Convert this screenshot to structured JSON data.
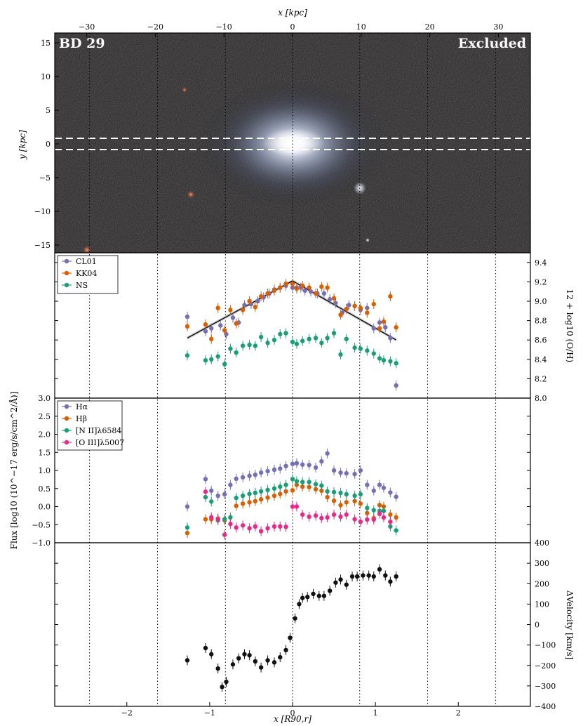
{
  "colors": {
    "purple": "#7570b3",
    "orange": "#d95f02",
    "green": "#1b9e77",
    "pink": "#e7298a",
    "black": "#111111"
  },
  "image_panel": {
    "title_left": "BD 29",
    "title_right": "Excluded",
    "top_xlabel": "x [kpc]",
    "ylabel": "y [kpc]",
    "top_xticks": [
      "−30",
      "−20",
      "−10",
      "0",
      "10",
      "20",
      "30"
    ],
    "yticks": [
      "15",
      "10",
      "5",
      "0",
      "−5",
      "−10",
      "−15"
    ]
  },
  "chart_data": [
    {
      "type": "scatter",
      "panel": "metallicity",
      "ylabel": "12 + log10 (O/H)",
      "ylim": [
        8.0,
        9.5
      ],
      "yticks": [
        "9.4",
        "9.2",
        "9.0",
        "8.8",
        "8.6",
        "8.4",
        "8.2",
        "8.0"
      ],
      "legend_position": "top-left",
      "series": [
        {
          "name": "CL01",
          "color": "#7570b3",
          "x": [
            -1.27,
            -1.05,
            -0.98,
            -0.87,
            -0.8,
            -0.72,
            -0.65,
            -0.58,
            -0.5,
            -0.42,
            -0.35,
            -0.28,
            -0.22,
            -0.15,
            -0.08,
            0.0,
            0.05,
            0.1,
            0.15,
            0.22,
            0.3,
            0.38,
            0.45,
            0.52,
            0.6,
            0.68,
            0.75,
            0.82,
            0.9,
            0.98,
            1.05,
            1.12,
            1.18,
            1.25
          ],
          "y": [
            8.84,
            8.69,
            8.72,
            8.75,
            8.66,
            8.83,
            8.78,
            8.96,
            8.97,
            9.0,
            9.04,
            9.08,
            9.12,
            9.14,
            9.16,
            9.14,
            9.14,
            9.14,
            9.11,
            9.1,
            9.08,
            9.08,
            9.02,
            8.98,
            8.88,
            8.96,
            8.95,
            8.91,
            8.93,
            8.72,
            8.78,
            8.73,
            8.62,
            8.13
          ]
        },
        {
          "name": "KK04",
          "color": "#d95f02",
          "x": [
            -1.27,
            -1.05,
            -0.98,
            -0.9,
            -0.82,
            -0.75,
            -0.68,
            -0.6,
            -0.52,
            -0.45,
            -0.38,
            -0.3,
            -0.22,
            -0.15,
            -0.08,
            0.0,
            0.05,
            0.12,
            0.2,
            0.28,
            0.35,
            0.42,
            0.5,
            0.58,
            0.65,
            0.75,
            0.82,
            0.9,
            0.98,
            1.05,
            1.1,
            1.18,
            1.25
          ],
          "y": [
            8.74,
            8.76,
            8.61,
            8.93,
            8.7,
            8.91,
            8.77,
            8.91,
            9.0,
            8.94,
            9.05,
            9.08,
            9.11,
            9.14,
            9.18,
            9.18,
            9.13,
            9.16,
            9.14,
            9.08,
            9.15,
            9.14,
            9.03,
            8.86,
            8.92,
            8.95,
            8.93,
            8.88,
            8.97,
            8.72,
            8.79,
            9.05,
            8.73
          ]
        },
        {
          "name": "NS",
          "color": "#1b9e77",
          "x": [
            -1.27,
            -1.05,
            -0.98,
            -0.9,
            -0.82,
            -0.75,
            -0.68,
            -0.6,
            -0.52,
            -0.45,
            -0.38,
            -0.3,
            -0.22,
            -0.15,
            -0.08,
            0.0,
            0.05,
            0.12,
            0.2,
            0.28,
            0.35,
            0.42,
            0.5,
            0.58,
            0.65,
            0.75,
            0.82,
            0.9,
            0.98,
            1.05,
            1.1,
            1.18,
            1.25
          ],
          "y": [
            8.44,
            8.39,
            8.4,
            8.43,
            8.35,
            8.51,
            8.47,
            8.54,
            8.55,
            8.54,
            8.63,
            8.57,
            8.6,
            8.66,
            8.67,
            8.58,
            8.56,
            8.59,
            8.61,
            8.62,
            8.57,
            8.62,
            8.67,
            8.45,
            8.61,
            8.52,
            8.51,
            8.49,
            8.46,
            8.41,
            8.39,
            8.38,
            8.36
          ]
        }
      ],
      "fit_line": {
        "x": [
          -1.27,
          0.0,
          1.25
        ],
        "y": [
          8.62,
          9.21,
          8.6
        ]
      }
    },
    {
      "type": "scatter",
      "panel": "flux",
      "ylabel": "Flux [log10 (10^−17 erg/s/cm^2/Å)]",
      "ylim": [
        -1.0,
        3.0
      ],
      "yticks": [
        "3.0",
        "2.5",
        "2.0",
        "1.5",
        "1.0",
        "0.5",
        "0.0",
        "−0.5",
        "−1.0"
      ],
      "legend_position": "top-left",
      "series": [
        {
          "name": "Hα",
          "color": "#7570b3",
          "x": [
            -1.27,
            -1.05,
            -0.98,
            -0.9,
            -0.82,
            -0.75,
            -0.68,
            -0.6,
            -0.52,
            -0.45,
            -0.38,
            -0.3,
            -0.22,
            -0.15,
            -0.08,
            0.0,
            0.05,
            0.12,
            0.2,
            0.28,
            0.35,
            0.42,
            0.5,
            0.58,
            0.65,
            0.75,
            0.82,
            0.9,
            0.98,
            1.05,
            1.1,
            1.18,
            1.25
          ],
          "y": [
            0.0,
            0.76,
            0.44,
            0.3,
            0.34,
            0.6,
            0.77,
            0.81,
            0.85,
            0.88,
            0.94,
            0.98,
            1.02,
            1.05,
            1.12,
            1.18,
            1.2,
            1.16,
            1.15,
            1.08,
            1.25,
            1.47,
            1.0,
            0.94,
            0.92,
            0.9,
            1.0,
            0.6,
            0.44,
            0.6,
            0.52,
            0.39,
            0.27
          ]
        },
        {
          "name": "Hβ",
          "color": "#d95f02",
          "x": [
            -1.27,
            -1.05,
            -0.98,
            -0.9,
            -0.82,
            -0.75,
            -0.68,
            -0.6,
            -0.52,
            -0.45,
            -0.38,
            -0.3,
            -0.22,
            -0.15,
            -0.08,
            0.0,
            0.05,
            0.12,
            0.2,
            0.28,
            0.35,
            0.42,
            0.5,
            0.58,
            0.65,
            0.75,
            0.82,
            0.9,
            0.98,
            1.05,
            1.1,
            1.18,
            1.25
          ],
          "y": [
            -0.73,
            -0.35,
            -0.35,
            -0.33,
            -0.38,
            -0.3,
            0.02,
            0.08,
            0.12,
            0.15,
            0.2,
            0.25,
            0.3,
            0.35,
            0.42,
            0.45,
            0.6,
            0.55,
            0.54,
            0.48,
            0.44,
            0.26,
            0.16,
            0.04,
            0.12,
            0.15,
            0.08,
            -0.18,
            -0.32,
            0.04,
            0.0,
            -0.22,
            -0.3
          ]
        },
        {
          "name": "[N II]λ6584",
          "color": "#1b9e77",
          "x": [
            -1.27,
            -1.05,
            -0.98,
            -0.9,
            -0.82,
            -0.75,
            -0.68,
            -0.6,
            -0.52,
            -0.45,
            -0.38,
            -0.3,
            -0.22,
            -0.15,
            -0.08,
            0.0,
            0.05,
            0.12,
            0.2,
            0.28,
            0.35,
            0.42,
            0.5,
            0.58,
            0.65,
            0.75,
            0.82,
            0.9,
            0.98,
            1.05,
            1.1,
            1.18,
            1.25
          ],
          "y": [
            -0.58,
            0.26,
            0.14,
            -0.38,
            -0.35,
            -0.3,
            0.24,
            0.3,
            0.35,
            0.38,
            0.42,
            0.46,
            0.5,
            0.55,
            0.6,
            0.76,
            0.7,
            0.68,
            0.68,
            0.62,
            0.58,
            0.42,
            0.4,
            0.38,
            0.34,
            0.3,
            0.34,
            -0.04,
            -0.1,
            -0.12,
            -0.12,
            -0.55,
            -0.66
          ]
        },
        {
          "name": "[O III]λ5007",
          "color": "#e7298a",
          "x": [
            -1.05,
            -0.98,
            -0.9,
            -0.82,
            -0.75,
            -0.68,
            -0.6,
            -0.52,
            -0.45,
            -0.38,
            -0.3,
            -0.22,
            -0.15,
            -0.08,
            0.0,
            0.05,
            0.12,
            0.2,
            0.28,
            0.35,
            0.42,
            0.5,
            0.58,
            0.65,
            0.75,
            0.82,
            0.9,
            0.98,
            1.05,
            1.1,
            1.18
          ],
          "y": [
            0.41,
            -0.3,
            -0.35,
            -0.78,
            -0.48,
            -0.58,
            -0.52,
            -0.6,
            -0.55,
            -0.68,
            -0.6,
            -0.55,
            -0.55,
            -0.56,
            0.0,
            0.0,
            -0.22,
            -0.28,
            -0.25,
            -0.32,
            -0.3,
            -0.22,
            -0.28,
            -0.22,
            -0.35,
            -0.42,
            -0.36,
            -0.36,
            -0.2,
            -0.3,
            -0.42
          ]
        }
      ]
    },
    {
      "type": "scatter",
      "panel": "velocity",
      "ylabel": "ΔVelocity [km/s]",
      "xlabel": "x [R90,r]",
      "xlim": [
        -2.87,
        2.87
      ],
      "ylim": [
        -400,
        400
      ],
      "xticks": [
        "−2",
        "−1",
        "0",
        "1",
        "2"
      ],
      "yticks": [
        "400",
        "300",
        "200",
        "100",
        "0",
        "−100",
        "−200",
        "−300",
        "−400"
      ],
      "series": [
        {
          "name": "",
          "color": "#111111",
          "x": [
            -1.27,
            -1.05,
            -0.98,
            -0.9,
            -0.85,
            -0.8,
            -0.72,
            -0.65,
            -0.58,
            -0.52,
            -0.45,
            -0.38,
            -0.3,
            -0.22,
            -0.15,
            -0.08,
            -0.03,
            0.03,
            0.08,
            0.12,
            0.18,
            0.25,
            0.32,
            0.38,
            0.45,
            0.52,
            0.58,
            0.65,
            0.72,
            0.78,
            0.85,
            0.92,
            0.98,
            1.05,
            1.12,
            1.18,
            1.25
          ],
          "y": [
            -175,
            -115,
            -145,
            -215,
            -305,
            -280,
            -195,
            -165,
            -145,
            -150,
            -180,
            -210,
            -175,
            -185,
            -160,
            -125,
            -65,
            30,
            100,
            130,
            135,
            150,
            140,
            140,
            165,
            205,
            220,
            195,
            235,
            235,
            240,
            240,
            235,
            270,
            240,
            210,
            235
          ]
        }
      ]
    }
  ],
  "shared_xlim": [
    -2.87,
    2.87
  ],
  "vertical_markers": [
    -2.45,
    -1.63,
    -0.81,
    0.0,
    0.81,
    1.63,
    2.45
  ]
}
